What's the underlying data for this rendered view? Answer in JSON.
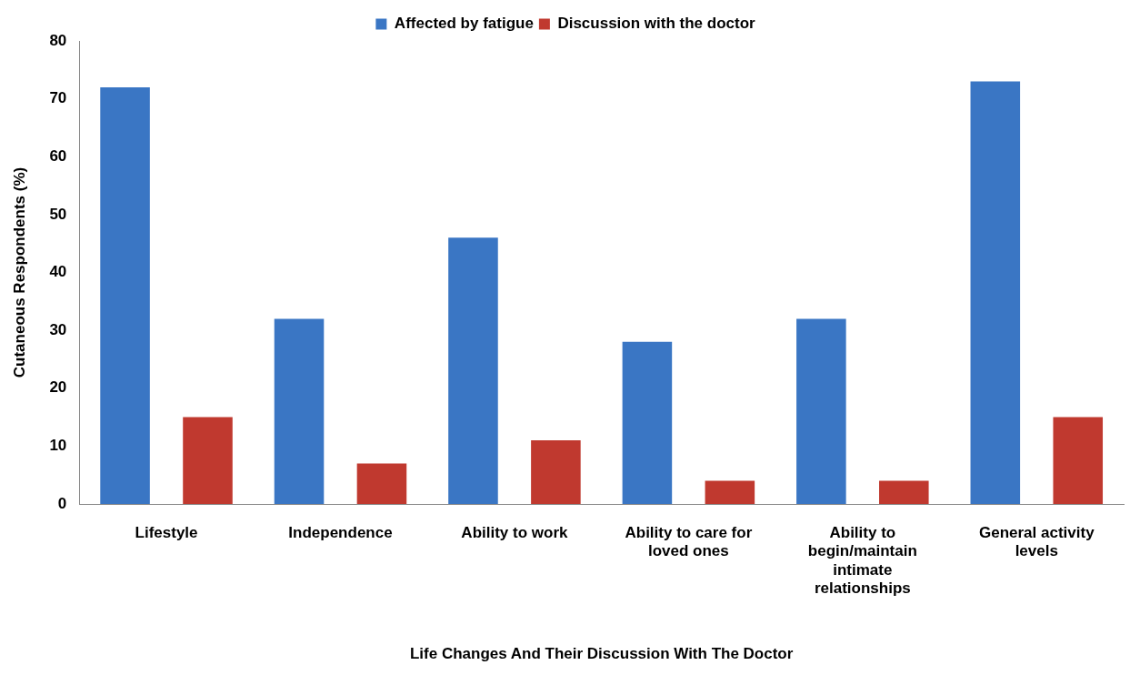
{
  "chart_data": {
    "type": "bar",
    "xlabel": "Life Changes And Their Discussion With The Doctor",
    "ylabel": "Cutaneous Respondents (%)",
    "categories": [
      "Lifestyle",
      "Independence",
      "Ability to work",
      "Ability to care for loved ones",
      "Ability to begin/maintain intimate relationships",
      "General activity levels"
    ],
    "series": [
      {
        "name": "Affected by fatigue",
        "color": "#3a76c4",
        "values": [
          72,
          32,
          46,
          28,
          32,
          73
        ]
      },
      {
        "name": "Discussion with the doctor",
        "color": "#c0392f",
        "values": [
          15,
          7,
          11,
          4,
          4,
          15
        ]
      }
    ],
    "ylim": [
      0,
      80
    ],
    "yticks": [
      0,
      10,
      20,
      30,
      40,
      50,
      60,
      70,
      80
    ],
    "grid": false,
    "legend": "top"
  }
}
